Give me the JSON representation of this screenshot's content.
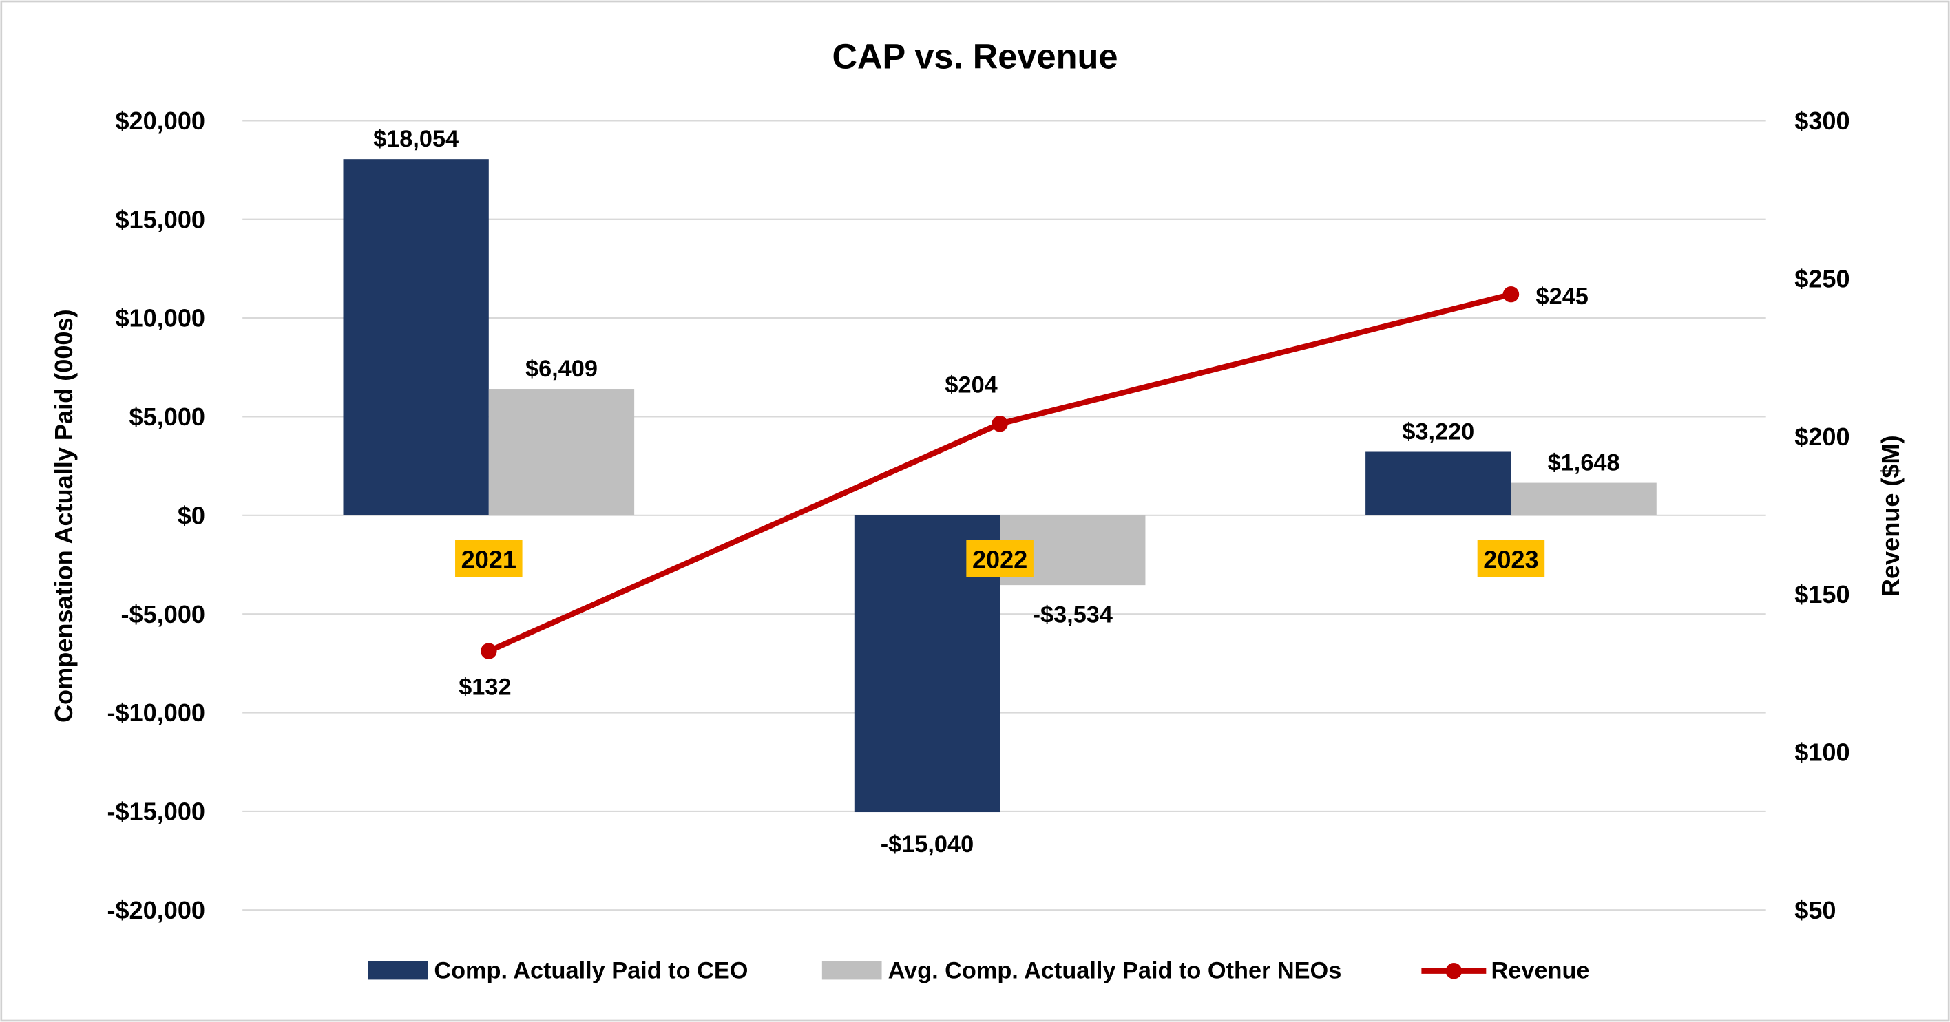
{
  "chart_data": {
    "type": "bar",
    "title": "CAP vs. Revenue",
    "categories": [
      "2021",
      "2022",
      "2023"
    ],
    "ylabel": "Compensation Actually Paid (000s)",
    "y2label": "Revenue ($M)",
    "ylim": [
      -20000,
      20000
    ],
    "y2lim": [
      50,
      300
    ],
    "yticks": [
      "$20,000",
      "$15,000",
      "$10,000",
      "$5,000",
      "$0",
      "-$5,000",
      "-$10,000",
      "-$15,000",
      "-$20,000"
    ],
    "y2ticks": [
      "$300",
      "$250",
      "$200",
      "$150",
      "$100",
      "$50"
    ],
    "grid": true,
    "legend_position": "bottom",
    "series": [
      {
        "name": "Comp. Actually Paid to CEO",
        "type": "bar",
        "color": "#1F3864",
        "values": [
          18054,
          -15040,
          3220
        ],
        "labels": [
          "$18,054",
          "-$15,040",
          "$3,220"
        ]
      },
      {
        "name": "Avg. Comp. Actually Paid to Other NEOs",
        "type": "bar",
        "color": "#BFBFBF",
        "values": [
          6409,
          -3534,
          1648
        ],
        "labels": [
          "$6,409",
          "-$3,534",
          "$1,648"
        ]
      },
      {
        "name": "Revenue",
        "type": "line",
        "axis": "secondary",
        "color": "#C00000",
        "values": [
          132,
          204,
          245
        ],
        "labels": [
          "$132",
          "$204",
          "$245"
        ]
      }
    ],
    "category_highlight_color": "#FFC000"
  }
}
